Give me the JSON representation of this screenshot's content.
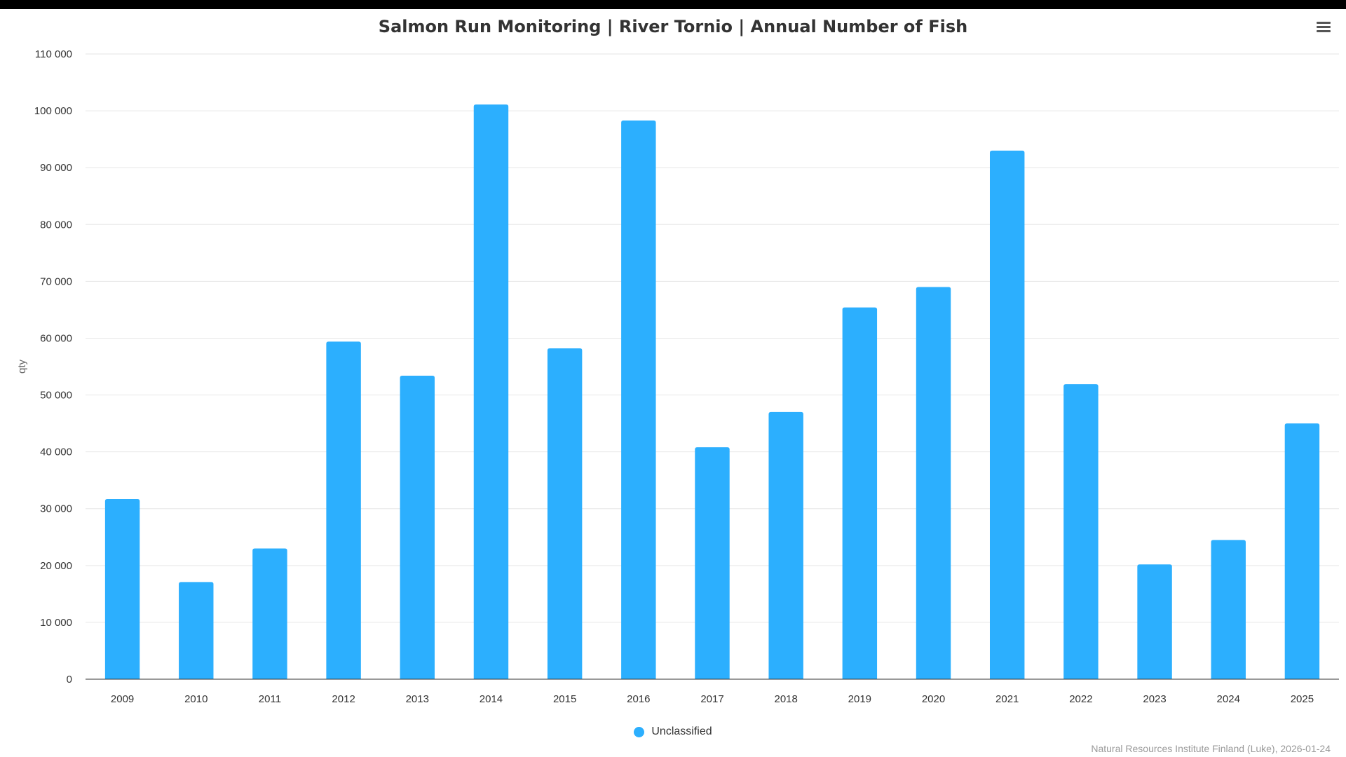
{
  "title": "Salmon Run Monitoring | River Tornio | Annual Number of Fish",
  "menu_icon": "hamburger-menu-icon",
  "credits": "Natural Resources Institute Finland (Luke), 2026-01-24",
  "chart_data": {
    "type": "bar",
    "title": "Salmon Run Monitoring | River Tornio | Annual Number of Fish",
    "xlabel": "",
    "ylabel": "qty",
    "ylim": [
      0,
      110000
    ],
    "yticks": [
      "0",
      "10 000",
      "20 000",
      "30 000",
      "40 000",
      "50 000",
      "60 000",
      "70 000",
      "80 000",
      "90 000",
      "100 000",
      "110 000"
    ],
    "categories": [
      "2009",
      "2010",
      "2011",
      "2012",
      "2013",
      "2014",
      "2015",
      "2016",
      "2017",
      "2018",
      "2019",
      "2020",
      "2021",
      "2022",
      "2023",
      "2024",
      "2025"
    ],
    "series": [
      {
        "name": "Unclassified",
        "color": "#2caffe",
        "values": [
          31700,
          17100,
          23000,
          59400,
          53400,
          101100,
          58200,
          98300,
          40800,
          47000,
          65400,
          69000,
          93000,
          51900,
          20200,
          24500,
          45000
        ]
      }
    ],
    "grid": true,
    "legend_position": "bottom-center"
  }
}
